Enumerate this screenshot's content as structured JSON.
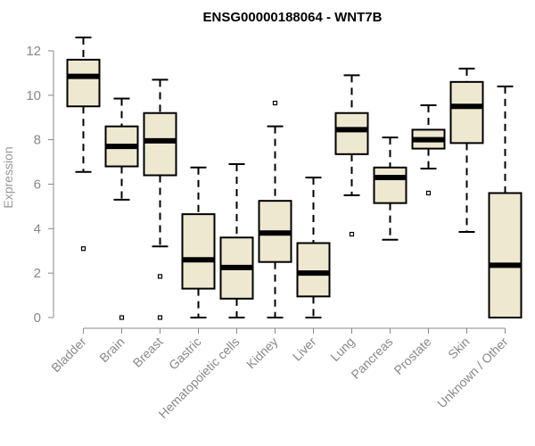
{
  "chart_data": {
    "type": "boxplot",
    "title": "ENSG00000188064 - WNT7B",
    "ylabel": "Expression",
    "xlabel": "",
    "ylim": [
      0,
      12.6
    ],
    "yticks": [
      0,
      2,
      4,
      6,
      8,
      10,
      12
    ],
    "grid": false,
    "colors": {
      "box_fill": "#eee8d0",
      "stroke": "#000000",
      "axis": "#888888"
    },
    "categories": [
      "Bladder",
      "Brain",
      "Breast",
      "Gastric",
      "Hematopoietic cells",
      "Kidney",
      "Liver",
      "Lung",
      "Pancreas",
      "Prostate",
      "Skin",
      "Unknown / Other"
    ],
    "boxes": [
      {
        "category": "Bladder",
        "whisker_low": 6.55,
        "q1": 9.5,
        "median": 10.85,
        "q3": 11.6,
        "whisker_high": 12.6,
        "outliers": [
          3.1
        ]
      },
      {
        "category": "Brain",
        "whisker_low": 5.3,
        "q1": 6.8,
        "median": 7.7,
        "q3": 8.6,
        "whisker_high": 9.85,
        "outliers": [
          0.0
        ]
      },
      {
        "category": "Breast",
        "whisker_low": 3.2,
        "q1": 6.4,
        "median": 7.95,
        "q3": 9.2,
        "whisker_high": 10.7,
        "outliers": [
          1.85,
          0.0
        ]
      },
      {
        "category": "Gastric",
        "whisker_low": 0.0,
        "q1": 1.3,
        "median": 2.6,
        "q3": 4.65,
        "whisker_high": 6.75,
        "outliers": []
      },
      {
        "category": "Hematopoietic cells",
        "whisker_low": 0.0,
        "q1": 0.85,
        "median": 2.25,
        "q3": 3.6,
        "whisker_high": 6.9,
        "outliers": []
      },
      {
        "category": "Kidney",
        "whisker_low": 0.0,
        "q1": 2.5,
        "median": 3.8,
        "q3": 5.25,
        "whisker_high": 8.6,
        "outliers": [
          9.65
        ]
      },
      {
        "category": "Liver",
        "whisker_low": 0.0,
        "q1": 0.95,
        "median": 2.0,
        "q3": 3.35,
        "whisker_high": 6.3,
        "outliers": []
      },
      {
        "category": "Lung",
        "whisker_low": 5.5,
        "q1": 7.35,
        "median": 8.45,
        "q3": 9.2,
        "whisker_high": 10.9,
        "outliers": [
          3.75
        ]
      },
      {
        "category": "Pancreas",
        "whisker_low": 3.5,
        "q1": 5.15,
        "median": 6.3,
        "q3": 6.75,
        "whisker_high": 8.1,
        "outliers": []
      },
      {
        "category": "Prostate",
        "whisker_low": 6.7,
        "q1": 7.6,
        "median": 8.0,
        "q3": 8.45,
        "whisker_high": 9.55,
        "outliers": [
          5.6
        ]
      },
      {
        "category": "Skin",
        "whisker_low": 3.85,
        "q1": 7.85,
        "median": 9.5,
        "q3": 10.6,
        "whisker_high": 11.2,
        "outliers": []
      },
      {
        "category": "Unknown / Other",
        "whisker_low": 0.0,
        "q1": 0.0,
        "median": 2.35,
        "q3": 5.6,
        "whisker_high": 10.4,
        "outliers": []
      }
    ]
  }
}
